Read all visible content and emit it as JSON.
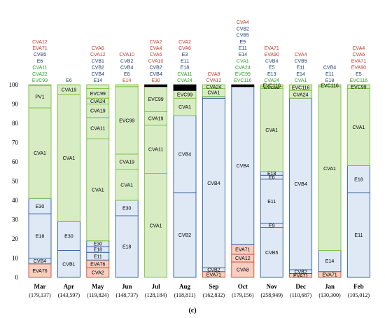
{
  "colors": {
    "A": "#d8ecc4",
    "A_border": "#7ac142",
    "B": "#dfe9f5",
    "B_border": "#2e5a9c",
    "C": "#f7cfc2",
    "C_border": "#d04a2c",
    "blackband": "#000000",
    "label_red": "#c0392b",
    "label_blue": "#1f3b73",
    "label_green": "#2e9e2e"
  },
  "chart_data": {
    "type": "bar",
    "stacked": true,
    "panel_label": "(c)",
    "ylim": [
      0,
      100
    ],
    "yticks": [
      "0",
      "10",
      "20",
      "30",
      "40",
      "50",
      "60",
      "70",
      "80",
      "90",
      "100"
    ],
    "grid": false,
    "columns": [
      {
        "month": "Mar",
        "n": "(179,137)",
        "segments": [
          {
            "label": "EVA76",
            "value": 7,
            "group": "C"
          },
          {
            "label": "CVB4",
            "value": 3,
            "group": "B"
          },
          {
            "label": "E18",
            "value": 23,
            "group": "B"
          },
          {
            "label": "E30",
            "value": 8,
            "group": "B"
          },
          {
            "label": "CVA1",
            "value": 47,
            "group": "A"
          },
          {
            "label": "PV1",
            "value": 11.5,
            "group": "A"
          },
          {
            "label": "",
            "value": 0.5,
            "group": "A"
          }
        ],
        "minor": [
          {
            "text": "EVC99",
            "group": "A"
          },
          {
            "text": "CVA22",
            "group": "A"
          },
          {
            "text": "CVA11",
            "group": "A"
          },
          {
            "text": "E6",
            "group": "B"
          },
          {
            "text": "CVB5",
            "group": "B"
          },
          {
            "text": "EVA71",
            "group": "C"
          },
          {
            "text": "CVA12",
            "group": "C"
          }
        ]
      },
      {
        "month": "Apr",
        "n": "(143,597)",
        "segments": [
          {
            "label": "CVB1",
            "value": 14,
            "group": "B"
          },
          {
            "label": "E30",
            "value": 15,
            "group": "B"
          },
          {
            "label": "CVA1",
            "value": 66,
            "group": "A"
          },
          {
            "label": "CVA19",
            "value": 5,
            "group": "A"
          }
        ],
        "minor": [
          {
            "text": "E6",
            "group": "B"
          }
        ]
      },
      {
        "month": "May",
        "n": "(119,824)",
        "segments": [
          {
            "label": "CVA2",
            "value": 5,
            "group": "C"
          },
          {
            "label": "EVA76",
            "value": 4,
            "group": "C"
          },
          {
            "label": "E11",
            "value": 4,
            "group": "B"
          },
          {
            "label": "E18",
            "value": 3,
            "group": "B"
          },
          {
            "label": "E30",
            "value": 3,
            "group": "B"
          },
          {
            "label": "CVA1",
            "value": 53,
            "group": "A"
          },
          {
            "label": "CVA11",
            "value": 11,
            "group": "A"
          },
          {
            "label": "CVA19",
            "value": 7,
            "group": "A"
          },
          {
            "label": "CVA24",
            "value": 3,
            "group": "A"
          },
          {
            "label": "EVC99",
            "value": 5,
            "group": "A"
          },
          {
            "label": "",
            "value": 2,
            "group": "A"
          }
        ],
        "minor": [
          {
            "text": "E14",
            "group": "B"
          },
          {
            "text": "CVB4",
            "group": "B"
          },
          {
            "text": "CVB2",
            "group": "B"
          },
          {
            "text": "CVB1",
            "group": "B"
          },
          {
            "text": "CVA12",
            "group": "C"
          },
          {
            "text": "CVA6",
            "group": "C"
          }
        ]
      },
      {
        "month": "Jun",
        "n": "(148,737)",
        "segments": [
          {
            "label": "E18",
            "value": 32,
            "group": "B"
          },
          {
            "label": "E30",
            "value": 8,
            "group": "B"
          },
          {
            "label": "CVA1",
            "value": 16,
            "group": "A"
          },
          {
            "label": "CVA19",
            "value": 8,
            "group": "A"
          },
          {
            "label": "EVC99",
            "value": 35,
            "group": "A"
          },
          {
            "label": "",
            "value": 1,
            "group": "A"
          }
        ],
        "minor": [
          {
            "text": "E14",
            "group": "C"
          },
          {
            "text": "E6",
            "group": "B"
          },
          {
            "text": "CVB4",
            "group": "B"
          },
          {
            "text": "CVB2",
            "group": "B"
          },
          {
            "text": "CVA10",
            "group": "C"
          }
        ]
      },
      {
        "month": "Jul",
        "n": "(128,184)",
        "segments": [
          {
            "label": "CVA1",
            "value": 54,
            "group": "A"
          },
          {
            "label": "CVA11",
            "value": 25,
            "group": "A"
          },
          {
            "label": "CVA19",
            "value": 7,
            "group": "A"
          },
          {
            "label": "EVC99",
            "value": 13,
            "group": "A"
          },
          {
            "label": "",
            "value": 1,
            "group": "blackband"
          }
        ],
        "minor": [
          {
            "text": "E30",
            "group": "C"
          },
          {
            "text": "CVB4",
            "group": "B"
          },
          {
            "text": "CVB2",
            "group": "B"
          },
          {
            "text": "CVA10",
            "group": "C"
          },
          {
            "text": "CVA6",
            "group": "C"
          },
          {
            "text": "CVA4",
            "group": "C"
          },
          {
            "text": "CVA2",
            "group": "C"
          }
        ]
      },
      {
        "month": "Aug",
        "n": "(118,811)",
        "segments": [
          {
            "label": "CVB2",
            "value": 44,
            "group": "B"
          },
          {
            "label": "CVB4",
            "value": 40,
            "group": "B"
          },
          {
            "label": "CVA1",
            "value": 9,
            "group": "A"
          },
          {
            "label": "EVC99",
            "value": 4,
            "group": "A"
          },
          {
            "label": "",
            "value": 3,
            "group": "blackband"
          }
        ],
        "minor": [
          {
            "text": "CVA24",
            "group": "A"
          },
          {
            "text": "CVA11",
            "group": "A"
          },
          {
            "text": "E18",
            "group": "B"
          },
          {
            "text": "E11",
            "group": "B"
          },
          {
            "text": "E3",
            "group": "B"
          },
          {
            "text": "CVA6",
            "group": "C"
          },
          {
            "text": "CVA2",
            "group": "C"
          }
        ]
      },
      {
        "month": "Sep",
        "n": "(162,832)",
        "segments": [
          {
            "label": "EVA71",
            "value": 3,
            "group": "C"
          },
          {
            "label": "CVB2",
            "value": 2,
            "group": "B"
          },
          {
            "label": "CVB4",
            "value": 88,
            "group": "B"
          },
          {
            "label": "",
            "value": 1,
            "group": "B"
          },
          {
            "label": "CVA1",
            "value": 4,
            "group": "A"
          },
          {
            "label": "CVA24",
            "value": 2,
            "group": "A"
          }
        ],
        "minor": [
          {
            "text": "CVA12",
            "group": "C"
          },
          {
            "text": "CVA8",
            "group": "C"
          }
        ]
      },
      {
        "month": "Oct",
        "n": "(179,156)",
        "segments": [
          {
            "label": "CVA8",
            "value": 8,
            "group": "C"
          },
          {
            "label": "CVA12",
            "value": 4,
            "group": "C"
          },
          {
            "label": "EVA71",
            "value": 5,
            "group": "C"
          },
          {
            "label": "CVB4",
            "value": 82,
            "group": "B"
          },
          {
            "label": "",
            "value": 1,
            "group": "blackband"
          }
        ],
        "minor": [
          {
            "text": "EVC116",
            "group": "A"
          },
          {
            "text": "EVC99",
            "group": "A"
          },
          {
            "text": "CVA24",
            "group": "A"
          },
          {
            "text": "CVA1",
            "group": "A"
          },
          {
            "text": "E14",
            "group": "B"
          },
          {
            "text": "E11",
            "group": "B"
          },
          {
            "text": "E9",
            "group": "B"
          },
          {
            "text": "CVB5",
            "group": "B"
          },
          {
            "text": "CVB2",
            "group": "B"
          },
          {
            "text": "CVA4",
            "group": "C"
          }
        ]
      },
      {
        "month": "Nov",
        "n": "(258,949)",
        "segments": [
          {
            "label": "CVB5",
            "value": 26,
            "group": "B"
          },
          {
            "label": "E9",
            "value": 2,
            "group": "B"
          },
          {
            "label": "E11",
            "value": 23,
            "group": "B"
          },
          {
            "label": "E6",
            "value": 2,
            "group": "B"
          },
          {
            "label": "E18",
            "value": 2,
            "group": "B"
          },
          {
            "label": "CVA1",
            "value": 43,
            "group": "A"
          },
          {
            "label": "EVC99",
            "value": 1,
            "group": "A"
          },
          {
            "label": "EVC116",
            "value": 1,
            "group": "A"
          }
        ],
        "minor": [
          {
            "text": "CVA24",
            "group": "A"
          },
          {
            "text": "E13",
            "group": "B"
          },
          {
            "text": "E5",
            "group": "B"
          },
          {
            "text": "CVB4",
            "group": "B"
          },
          {
            "text": "EVA90",
            "group": "C"
          },
          {
            "text": "EVA71",
            "group": "C"
          }
        ]
      },
      {
        "month": "Dec",
        "n": "(110,687)",
        "segments": [
          {
            "label": "EVA71",
            "value": 2,
            "group": "C"
          },
          {
            "label": "CVB2",
            "value": 2,
            "group": "B"
          },
          {
            "label": "CVB4",
            "value": 89,
            "group": "B"
          },
          {
            "label": "CVA24",
            "value": 4,
            "group": "A"
          },
          {
            "label": "EVC116",
            "value": 3,
            "group": "A"
          }
        ],
        "minor": [
          {
            "text": "CVA1",
            "group": "A"
          },
          {
            "text": "E14",
            "group": "B"
          },
          {
            "text": "E11",
            "group": "B"
          },
          {
            "text": "CVB5",
            "group": "B"
          },
          {
            "text": "CVA4",
            "group": "C"
          }
        ]
      },
      {
        "month": "Jan",
        "n": "(130,300)",
        "segments": [
          {
            "label": "EVA71",
            "value": 3,
            "group": "C"
          },
          {
            "label": "E14",
            "value": 11,
            "group": "B"
          },
          {
            "label": "CVA1",
            "value": 85,
            "group": "A"
          },
          {
            "label": "EVC116",
            "value": 1,
            "group": "A"
          }
        ],
        "minor": [
          {
            "text": "E18",
            "group": "B"
          },
          {
            "text": "E11",
            "group": "B"
          },
          {
            "text": "CVB4",
            "group": "B"
          }
        ]
      },
      {
        "month": "Feb",
        "n": "(105,012)",
        "segments": [
          {
            "label": "E11",
            "value": 44,
            "group": "B"
          },
          {
            "label": "E18",
            "value": 14,
            "group": "B"
          },
          {
            "label": "CVA1",
            "value": 40,
            "group": "A"
          },
          {
            "label": "EVC99",
            "value": 2,
            "group": "A"
          }
        ],
        "minor": [
          {
            "text": "EVC116",
            "group": "A"
          },
          {
            "text": "E5",
            "group": "B"
          },
          {
            "text": "EVA90",
            "group": "C"
          },
          {
            "text": "EVA71",
            "group": "C"
          },
          {
            "text": "CVA6",
            "group": "C"
          },
          {
            "text": "CVA4",
            "group": "C"
          }
        ]
      }
    ]
  }
}
